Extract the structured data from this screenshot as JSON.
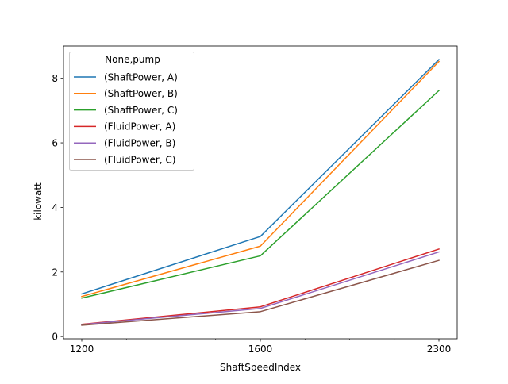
{
  "chart_data": {
    "type": "line",
    "xlabel": "ShaftSpeedIndex",
    "ylabel": "kilowatt",
    "categories": [
      "1200",
      "1600",
      "2300"
    ],
    "ylim": [
      -0.07,
      9.0
    ],
    "yticks": [
      0,
      2,
      4,
      6,
      8
    ],
    "grid": false,
    "legend": {
      "title": "None,pump",
      "placement": "top-left"
    },
    "series": [
      {
        "name": "(ShaftPower, A)",
        "color": "#1f77b4",
        "values": [
          1.32,
          3.1,
          8.58
        ]
      },
      {
        "name": "(ShaftPower, B)",
        "color": "#ff7f0e",
        "values": [
          1.24,
          2.8,
          8.52
        ]
      },
      {
        "name": "(ShaftPower, C)",
        "color": "#2ca02c",
        "values": [
          1.19,
          2.5,
          7.62
        ]
      },
      {
        "name": "(FluidPower, A)",
        "color": "#d62728",
        "values": [
          0.38,
          0.92,
          2.71
        ]
      },
      {
        "name": "(FluidPower, B)",
        "color": "#9467bd",
        "values": [
          0.37,
          0.87,
          2.62
        ]
      },
      {
        "name": "(FluidPower, C)",
        "color": "#8c564b",
        "values": [
          0.35,
          0.77,
          2.36
        ]
      }
    ]
  }
}
